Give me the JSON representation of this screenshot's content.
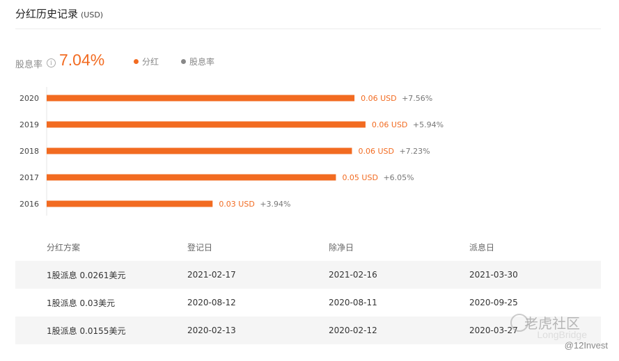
{
  "header": {
    "title": "分红历史记录",
    "unit": "(USD)"
  },
  "summary": {
    "yield_label": "股息率",
    "info_icon_glyph": "i",
    "yield_value": "7.04%",
    "legend": [
      {
        "label": "分红",
        "color": "#f26b21"
      },
      {
        "label": "股息率",
        "color": "#888888"
      }
    ]
  },
  "chart_data": {
    "type": "bar",
    "orientation": "horizontal",
    "categories": [
      "2020",
      "2019",
      "2018",
      "2017",
      "2016"
    ],
    "values": [
      0.06,
      0.06,
      0.06,
      0.05,
      0.03
    ],
    "value_labels": [
      "0.06 USD",
      "0.06 USD",
      "0.06 USD",
      "0.05 USD",
      "0.03 USD"
    ],
    "yield_labels": [
      "+7.56%",
      "+5.94%",
      "+7.23%",
      "+6.05%",
      "+3.94%"
    ],
    "color": "#f26b21",
    "xlim": [
      0,
      0.075
    ]
  },
  "table": {
    "headers": [
      "分红方案",
      "登记日",
      "除净日",
      "派息日"
    ],
    "rows": [
      [
        "1股派息 0.0261美元",
        "2021-02-17",
        "2021-02-16",
        "2021-03-30"
      ],
      [
        "1股派息 0.03美元",
        "2020-08-12",
        "2020-08-11",
        "2020-09-25"
      ],
      [
        "1股派息 0.0155美元",
        "2020-02-13",
        "2020-02-12",
        "2020-03-27"
      ]
    ]
  },
  "watermark": {
    "logo_text": "老虎社区",
    "sub_text": "LongBridge",
    "user": "@12Invest"
  }
}
